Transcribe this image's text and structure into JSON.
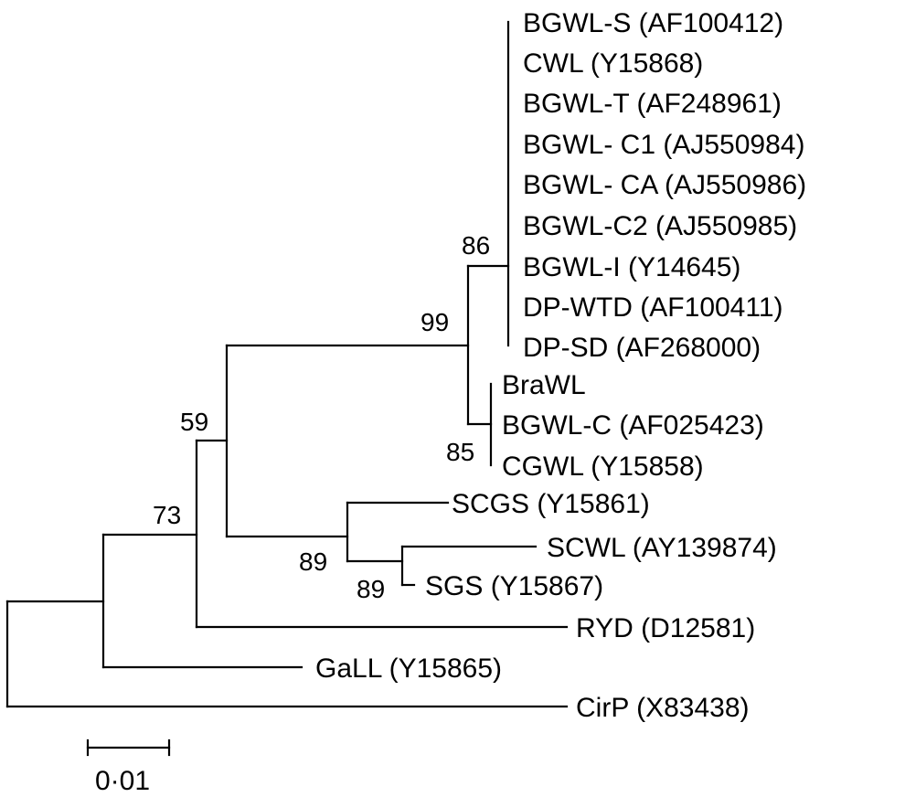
{
  "tree": {
    "leaves": [
      "BGWL-S (AF100412)",
      "CWL (Y15868)",
      "BGWL-T (AF248961)",
      "BGWL- C1 (AJ550984)",
      "BGWL- CA (AJ550986)",
      "BGWL-C2 (AJ550985)",
      "BGWL-I (Y14645)",
      "DP-WTD (AF100411)",
      "DP-SD (AF268000)",
      "BraWL",
      "BGWL-C (AF025423)",
      "CGWL (Y15858)",
      "SCGS (Y15861)",
      "SCWL (AY139874)",
      "SGS (Y15867)",
      "RYD (D12581)",
      "GaLL (Y15865)",
      "CirP (X83438)"
    ],
    "bootstrap": [
      "86",
      "99",
      "85",
      "59",
      "89",
      "89",
      "73"
    ],
    "scale_label": "0·01"
  }
}
